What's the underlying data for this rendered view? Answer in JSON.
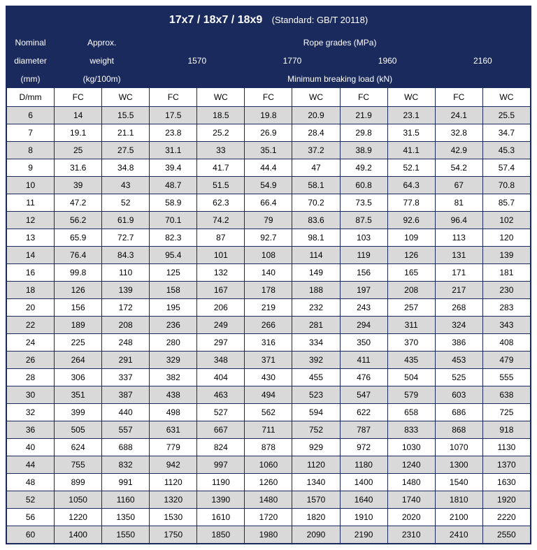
{
  "title_main": "17x7 / 18x7 / 18x9",
  "title_sub": "(Standard: GB/T 20118)",
  "header": {
    "nominal_diameter_l1": "Nominal",
    "nominal_diameter_l2": "diameter",
    "nominal_diameter_l3": "(mm)",
    "approx_weight_l1": "Approx.",
    "approx_weight_l2": "weight",
    "approx_weight_l3": "(kg/100m)",
    "rope_grades": "Rope grades (MPa)",
    "grades": [
      "1570",
      "1770",
      "1960",
      "2160"
    ],
    "min_break": "Minimum breaking load (kN)"
  },
  "subheader": [
    "D/mm",
    "FC",
    "WC",
    "FC",
    "WC",
    "FC",
    "WC",
    "FC",
    "WC",
    "FC",
    "WC"
  ],
  "rows": [
    [
      "6",
      "14",
      "15.5",
      "17.5",
      "18.5",
      "19.8",
      "20.9",
      "21.9",
      "23.1",
      "24.1",
      "25.5"
    ],
    [
      "7",
      "19.1",
      "21.1",
      "23.8",
      "25.2",
      "26.9",
      "28.4",
      "29.8",
      "31.5",
      "32.8",
      "34.7"
    ],
    [
      "8",
      "25",
      "27.5",
      "31.1",
      "33",
      "35.1",
      "37.2",
      "38.9",
      "41.1",
      "42.9",
      "45.3"
    ],
    [
      "9",
      "31.6",
      "34.8",
      "39.4",
      "41.7",
      "44.4",
      "47",
      "49.2",
      "52.1",
      "54.2",
      "57.4"
    ],
    [
      "10",
      "39",
      "43",
      "48.7",
      "51.5",
      "54.9",
      "58.1",
      "60.8",
      "64.3",
      "67",
      "70.8"
    ],
    [
      "11",
      "47.2",
      "52",
      "58.9",
      "62.3",
      "66.4",
      "70.2",
      "73.5",
      "77.8",
      "81",
      "85.7"
    ],
    [
      "12",
      "56.2",
      "61.9",
      "70.1",
      "74.2",
      "79",
      "83.6",
      "87.5",
      "92.6",
      "96.4",
      "102"
    ],
    [
      "13",
      "65.9",
      "72.7",
      "82.3",
      "87",
      "92.7",
      "98.1",
      "103",
      "109",
      "113",
      "120"
    ],
    [
      "14",
      "76.4",
      "84.3",
      "95.4",
      "101",
      "108",
      "114",
      "119",
      "126",
      "131",
      "139"
    ],
    [
      "16",
      "99.8",
      "110",
      "125",
      "132",
      "140",
      "149",
      "156",
      "165",
      "171",
      "181"
    ],
    [
      "18",
      "126",
      "139",
      "158",
      "167",
      "178",
      "188",
      "197",
      "208",
      "217",
      "230"
    ],
    [
      "20",
      "156",
      "172",
      "195",
      "206",
      "219",
      "232",
      "243",
      "257",
      "268",
      "283"
    ],
    [
      "22",
      "189",
      "208",
      "236",
      "249",
      "266",
      "281",
      "294",
      "311",
      "324",
      "343"
    ],
    [
      "24",
      "225",
      "248",
      "280",
      "297",
      "316",
      "334",
      "350",
      "370",
      "386",
      "408"
    ],
    [
      "26",
      "264",
      "291",
      "329",
      "348",
      "371",
      "392",
      "411",
      "435",
      "453",
      "479"
    ],
    [
      "28",
      "306",
      "337",
      "382",
      "404",
      "430",
      "455",
      "476",
      "504",
      "525",
      "555"
    ],
    [
      "30",
      "351",
      "387",
      "438",
      "463",
      "494",
      "523",
      "547",
      "579",
      "603",
      "638"
    ],
    [
      "32",
      "399",
      "440",
      "498",
      "527",
      "562",
      "594",
      "622",
      "658",
      "686",
      "725"
    ],
    [
      "36",
      "505",
      "557",
      "631",
      "667",
      "711",
      "752",
      "787",
      "833",
      "868",
      "918"
    ],
    [
      "40",
      "624",
      "688",
      "779",
      "824",
      "878",
      "929",
      "972",
      "1030",
      "1070",
      "1130"
    ],
    [
      "44",
      "755",
      "832",
      "942",
      "997",
      "1060",
      "1120",
      "1180",
      "1240",
      "1300",
      "1370"
    ],
    [
      "48",
      "899",
      "991",
      "1120",
      "1190",
      "1260",
      "1340",
      "1400",
      "1480",
      "1540",
      "1630"
    ],
    [
      "52",
      "1050",
      "1160",
      "1320",
      "1390",
      "1480",
      "1570",
      "1640",
      "1740",
      "1810",
      "1920"
    ],
    [
      "56",
      "1220",
      "1350",
      "1530",
      "1610",
      "1720",
      "1820",
      "1910",
      "2020",
      "2100",
      "2220"
    ],
    [
      "60",
      "1400",
      "1550",
      "1750",
      "1850",
      "1980",
      "2090",
      "2190",
      "2310",
      "2410",
      "2550"
    ]
  ],
  "colors": {
    "header_bg": "#1a2a5c",
    "header_fg": "#ffffff",
    "row_alt_bg": "#d9d9d9",
    "row_bg": "#ffffff",
    "border": "#1a2a5c"
  }
}
